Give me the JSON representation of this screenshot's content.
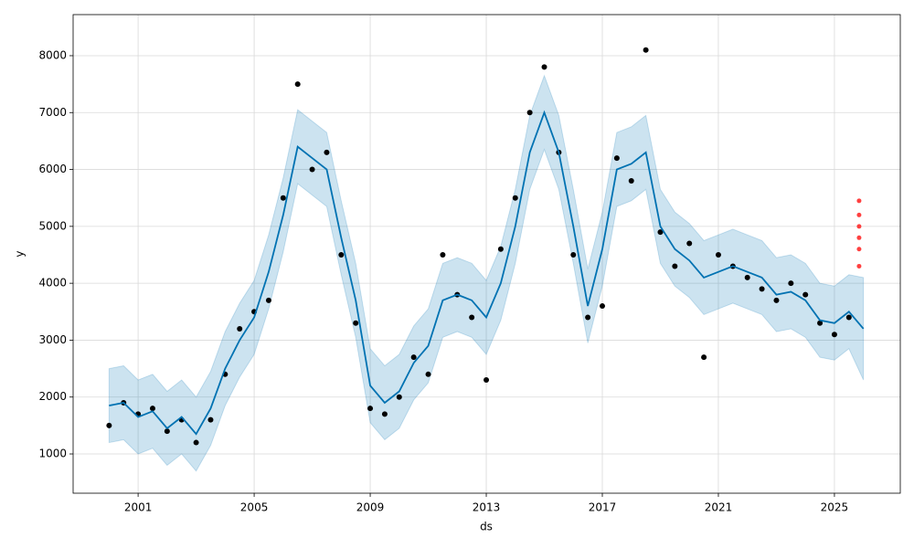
{
  "chart_data": {
    "type": "forecast",
    "x_label": "ds",
    "y_label": "y",
    "x": [
      2000.0,
      2000.5,
      2001.0,
      2001.5,
      2002.0,
      2002.5,
      2003.0,
      2003.5,
      2004.0,
      2004.5,
      2005.0,
      2005.5,
      2006.0,
      2006.5,
      2007.0,
      2007.5,
      2008.0,
      2008.5,
      2009.0,
      2009.5,
      2010.0,
      2010.5,
      2011.0,
      2011.5,
      2012.0,
      2012.5,
      2013.0,
      2013.5,
      2014.0,
      2014.5,
      2015.0,
      2015.5,
      2016.0,
      2016.5,
      2017.0,
      2017.5,
      2018.0,
      2018.5,
      2019.0,
      2019.5,
      2020.0,
      2020.5,
      2021.0,
      2021.5,
      2022.0,
      2022.5,
      2023.0,
      2023.5,
      2024.0,
      2024.5,
      2025.0,
      2025.5,
      2026.0
    ],
    "series": [
      {
        "style": "points",
        "color": "#000000",
        "values": [
          1500,
          1900,
          1700,
          1800,
          1400,
          1600,
          1200,
          1600,
          2400,
          3200,
          3500,
          3700,
          5500,
          7500,
          6000,
          6300,
          4500,
          3300,
          1800,
          1700,
          2000,
          2700,
          2400,
          4500,
          3800,
          3400,
          2300,
          4600,
          5500,
          7000,
          7800,
          6300,
          4500,
          3400,
          3600,
          6200,
          5800,
          8100,
          4900,
          4300,
          4700,
          2700,
          4500,
          4300,
          4100,
          3900,
          3700,
          4000,
          3800,
          3300,
          3100,
          3400,
          null
        ]
      },
      {
        "style": "line",
        "color": "#0072B2",
        "values": [
          1850,
          1900,
          1650,
          1750,
          1450,
          1650,
          1350,
          1800,
          2500,
          3000,
          3400,
          4200,
          5200,
          6400,
          6200,
          6000,
          4800,
          3700,
          2200,
          1900,
          2100,
          2600,
          2900,
          3700,
          3800,
          3700,
          3400,
          4000,
          5000,
          6300,
          7000,
          6300,
          5000,
          3600,
          4600,
          6000,
          6100,
          6300,
          5000,
          4600,
          4400,
          4100,
          4200,
          4300,
          4200,
          4100,
          3800,
          3850,
          3700,
          3350,
          3300,
          3500,
          3200
        ]
      }
    ],
    "interval": {
      "color": "#0072B2",
      "lower": [
        1200,
        1250,
        1000,
        1100,
        800,
        1000,
        700,
        1150,
        1850,
        2350,
        2750,
        3550,
        4550,
        5750,
        5550,
        5350,
        4150,
        3050,
        1550,
        1250,
        1450,
        1950,
        2250,
        3050,
        3150,
        3050,
        2750,
        3350,
        4350,
        5650,
        6350,
        5650,
        4350,
        2950,
        3950,
        5350,
        5450,
        5650,
        4350,
        3950,
        3750,
        3450,
        3550,
        3650,
        3550,
        3450,
        3150,
        3200,
        3050,
        2700,
        2650,
        2850,
        2300
      ],
      "upper": [
        2500,
        2550,
        2300,
        2400,
        2100,
        2300,
        2000,
        2450,
        3150,
        3650,
        4050,
        4850,
        5850,
        7050,
        6850,
        6650,
        5450,
        4350,
        2850,
        2550,
        2750,
        3250,
        3550,
        4350,
        4450,
        4350,
        4050,
        4650,
        5650,
        6950,
        7650,
        6950,
        5650,
        4250,
        5250,
        6650,
        6750,
        6950,
        5650,
        5250,
        5050,
        4750,
        4850,
        4950,
        4850,
        4750,
        4450,
        4500,
        4350,
        4000,
        3950,
        4150,
        4100
      ]
    },
    "extra_points": {
      "color": "#ff0000",
      "x": [
        2025.85,
        2025.85,
        2025.85,
        2025.85,
        2025.85,
        2025.85
      ],
      "values": [
        4300,
        4600,
        4800,
        5000,
        5200,
        5450
      ]
    },
    "xlim": [
      1998.76,
      2027.27
    ],
    "ylim": [
      310,
      8722
    ],
    "xticks": [
      2001,
      2005,
      2009,
      2013,
      2017,
      2021,
      2025
    ],
    "yticks": [
      1000,
      2000,
      3000,
      4000,
      5000,
      6000,
      7000,
      8000
    ],
    "grid": true
  }
}
